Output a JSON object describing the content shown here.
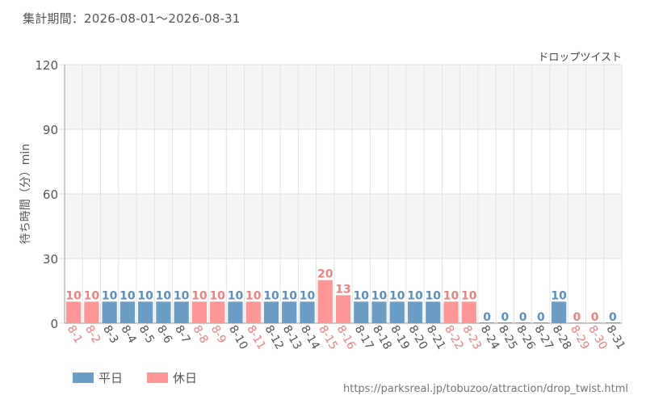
{
  "header": {
    "period": "集計期間：2026-08-01～2026-08-31"
  },
  "chart_data": {
    "type": "bar",
    "title": "ドロップツイスト",
    "ylabel": "待ち時間（分）min",
    "ylim": [
      0,
      120
    ],
    "yticks": [
      0,
      30,
      60,
      90,
      120
    ],
    "grid": true,
    "categories": [
      "8-1",
      "8-2",
      "8-3",
      "8-4",
      "8-5",
      "8-6",
      "8-7",
      "8-8",
      "8-9",
      "8-10",
      "8-11",
      "8-12",
      "8-13",
      "8-14",
      "8-15",
      "8-16",
      "8-17",
      "8-18",
      "8-19",
      "8-20",
      "8-21",
      "8-22",
      "8-23",
      "8-24",
      "8-25",
      "8-26",
      "8-27",
      "8-28",
      "8-29",
      "8-30",
      "8-31"
    ],
    "values": [
      10,
      10,
      10,
      10,
      10,
      10,
      10,
      10,
      10,
      10,
      10,
      10,
      10,
      10,
      20,
      13,
      10,
      10,
      10,
      10,
      10,
      10,
      10,
      0,
      0,
      0,
      0,
      10,
      0,
      0,
      0
    ],
    "day_type": [
      "休日",
      "休日",
      "平日",
      "平日",
      "平日",
      "平日",
      "平日",
      "休日",
      "休日",
      "平日",
      "休日",
      "平日",
      "平日",
      "平日",
      "休日",
      "休日",
      "平日",
      "平日",
      "平日",
      "平日",
      "平日",
      "休日",
      "休日",
      "平日",
      "平日",
      "平日",
      "平日",
      "平日",
      "休日",
      "休日",
      "平日"
    ],
    "series": [
      {
        "name": "平日",
        "color": "#6a9ec7"
      },
      {
        "name": "休日",
        "color": "#ff9696"
      }
    ],
    "label_colors": {
      "平日": "#555555",
      "休日": "#f08080"
    },
    "value_label_colors": {
      "平日": "#5b8fbf",
      "休日": "#f08080"
    },
    "legend_position": "bottom-left"
  },
  "footer": {
    "source": "https://parksreal.jp/tobuzoo/attraction/drop_twist.html"
  }
}
